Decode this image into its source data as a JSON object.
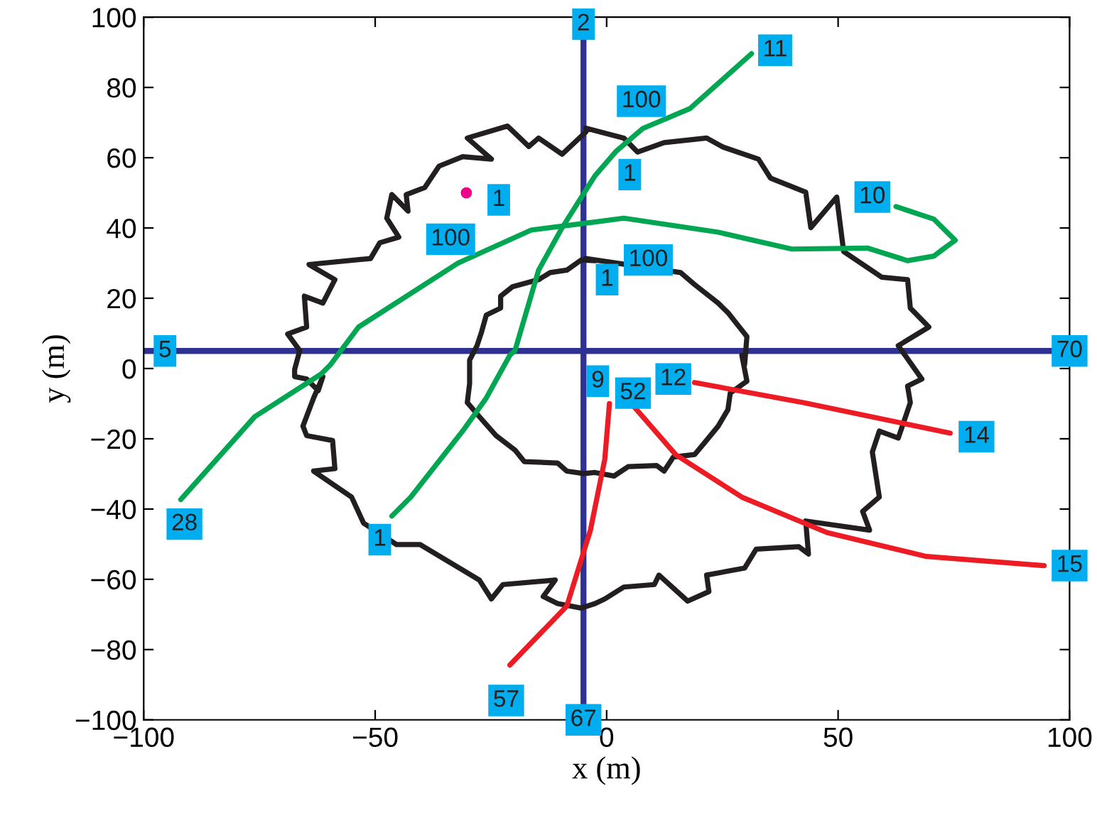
{
  "chart_data": {
    "type": "line",
    "xlabel": "x (m)",
    "ylabel": "y (m)",
    "xlim": [
      -100,
      100
    ],
    "ylim": [
      -100,
      100
    ],
    "xticks": [
      -100,
      -50,
      0,
      50,
      100
    ],
    "yticks": [
      -100,
      -80,
      -60,
      -40,
      -20,
      0,
      20,
      40,
      60,
      80,
      100
    ],
    "grid": false,
    "legend": false,
    "line_style": "solid",
    "series": [
      {
        "color": "#231f20",
        "x": [
          -4.5,
          -9.6,
          -14.7,
          -16.8,
          -21.4,
          -30.1,
          -24.9,
          -31.1,
          -36.2,
          -39.3,
          -43.3,
          -42.9,
          -46.4,
          -47.5,
          -44.9,
          -49,
          -51,
          -64.3,
          -58.7,
          -61.3,
          -65.3,
          -64.8,
          -68.9,
          -66.3,
          -67.4,
          -67.4,
          -64.8,
          -62.3,
          -61.3,
          -63.3,
          -65.6,
          -64.8,
          -59.2,
          -58.7,
          -63.3,
          -55.1,
          -52.5,
          -45.4,
          -40.3,
          -27.5,
          -24.9,
          -22.4,
          -11.1,
          -13.7,
          -10.6,
          -5.5,
          -2.5,
          -0.4,
          3.7,
          10.3,
          11.3,
          17.5,
          22.1,
          21.6,
          29.8,
          32.3,
          41.5,
          43.6,
          43,
          56.8,
          55.3,
          58.9,
          57.4,
          58.9,
          63,
          65.6,
          65,
          68.1,
          63,
          69.6,
          65.6,
          65,
          59.4,
          51.2,
          49.7,
          44.1,
          43,
          35.4,
          32.8,
          25.2,
          21.6,
          12.4,
          6.7,
          3.7,
          -4.5
        ],
        "values": [
          67.3,
          61,
          65.6,
          63.2,
          69,
          65.6,
          59.6,
          60.3,
          57.6,
          51.5,
          49.5,
          44.8,
          49.5,
          42.8,
          37.4,
          35.8,
          31.3,
          29.6,
          25.3,
          18.6,
          20.6,
          11.8,
          9.8,
          5.1,
          -0.3,
          -2.3,
          -3,
          -6.3,
          -2.3,
          -8.4,
          -16.4,
          -19.1,
          -20.5,
          -28.5,
          -29.2,
          -36.6,
          -44,
          -50.1,
          -50.1,
          -60.2,
          -65.6,
          -61.5,
          -60.2,
          -64.9,
          -66.9,
          -68.2,
          -66.9,
          -65.6,
          -62.2,
          -61.5,
          -58.8,
          -66.2,
          -63.5,
          -58.8,
          -56.8,
          -51.4,
          -50.7,
          -52.8,
          -43.4,
          -46,
          -40.7,
          -36.6,
          -23.8,
          -17.8,
          -19.8,
          -9.7,
          -5,
          -3,
          6.5,
          11.8,
          17.2,
          25.3,
          26,
          33.3,
          48.8,
          40.1,
          50.2,
          54.2,
          59.6,
          63,
          65.6,
          64.3,
          61.6,
          65.6,
          68.4
        ]
      },
      {
        "color": "#231f20",
        "x": [
          -2.5,
          -5.5,
          -8.6,
          -12.2,
          -14.7,
          -20.3,
          -22.9,
          -22.9,
          -26,
          -27,
          -28,
          -29.6,
          -29.6,
          -30.1,
          -27.5,
          -23.9,
          -19.8,
          -17.8,
          -10.6,
          -8.6,
          -5,
          -2.5,
          1.6,
          4.7,
          10.8,
          12.4,
          14.4,
          19,
          21.1,
          24.1,
          26.2,
          26.7,
          30.3,
          29.2,
          29.8,
          30.3,
          26.2,
          24.1,
          19,
          16,
          -4.5,
          -2.8
        ],
        "values": [
          30.7,
          30.9,
          28,
          27.3,
          25.3,
          23.3,
          20.6,
          17.2,
          15.2,
          10.5,
          6.5,
          2.4,
          -4.3,
          -9.7,
          -13.7,
          -19.1,
          -23.2,
          -26.5,
          -26.9,
          -29.2,
          -29.9,
          -29.6,
          -30.6,
          -27.9,
          -27.6,
          -29.2,
          -25.2,
          -24.5,
          -21.2,
          -16.4,
          -11.7,
          -7,
          -3.6,
          3.8,
          1,
          9.1,
          15.9,
          18.6,
          23.9,
          27.3,
          31.3,
          30.8
        ]
      },
      {
        "color": "#00a651",
        "x": [
          -92,
          -76,
          -61.7,
          -59.7,
          -53.6,
          -32.1,
          -16.3,
          -2.5,
          3.7,
          24.1,
          40,
          56.3,
          65,
          70.7,
          72.7,
          75.3,
          70.7,
          62.5
        ],
        "values": [
          -37.3,
          -13.7,
          -1.6,
          1,
          11.8,
          30,
          39.4,
          41.7,
          42.8,
          38.8,
          34,
          34.3,
          30.7,
          32,
          34,
          36.5,
          42.5,
          46.1
        ]
      },
      {
        "color": "#00a651",
        "x": [
          -46.4,
          -42.3,
          -31.1,
          -26,
          -20.9,
          -19.8,
          -14.7,
          -9.6,
          -2.5,
          2.1,
          7.8,
          18,
          31.3
        ],
        "values": [
          -42,
          -36.6,
          -17.8,
          -8.4,
          3.8,
          5.1,
          28,
          40.1,
          54.9,
          61.9,
          68.3,
          74,
          89.6
        ]
      },
      {
        "color": "#ed1c24",
        "x": [
          -20.9,
          -8.6,
          -3.5,
          -0.4,
          0.6
        ],
        "values": [
          -84.4,
          -67.6,
          -46,
          -25.8,
          -10
        ]
      },
      {
        "color": "#ed1c24",
        "x": [
          6,
          14.9,
          29.2,
          47.6,
          69.1,
          94.5
        ],
        "values": [
          -11,
          -24.5,
          -36.6,
          -46.7,
          -53.5,
          -56.1
        ]
      },
      {
        "color": "#ed1c24",
        "x": [
          19,
          42.5,
          74.2
        ],
        "values": [
          -4,
          -9.7,
          -18.4
        ]
      },
      {
        "type": "scatter",
        "color": "#ec008c",
        "x": [
          -30.3
        ],
        "values": [
          50
        ]
      }
    ],
    "ref_lines": [
      {
        "axis": "x",
        "value": -5,
        "color": "#2e3192"
      },
      {
        "axis": "y",
        "value": 5,
        "color": "#2e3192"
      }
    ],
    "annotations": [
      {
        "text": "2",
        "x": -5,
        "y": 98
      },
      {
        "text": "67",
        "x": -5,
        "y": -100
      },
      {
        "text": "5",
        "x": -95.4,
        "y": 5
      },
      {
        "text": "70",
        "x": 100,
        "y": 5
      },
      {
        "text": "1",
        "x": -23.3,
        "y": 48
      },
      {
        "text": "100",
        "x": -33.7,
        "y": 36.8
      },
      {
        "text": "100",
        "x": 7.5,
        "y": 76.1
      },
      {
        "text": "1",
        "x": 5,
        "y": 55.2
      },
      {
        "text": "1",
        "x": 0.1,
        "y": 25.3
      },
      {
        "text": "100",
        "x": 9,
        "y": 30.9
      },
      {
        "text": "10",
        "x": 57.4,
        "y": 48.8
      },
      {
        "text": "11",
        "x": 36.4,
        "y": 90.6
      },
      {
        "text": "28",
        "x": -91.2,
        "y": -44.3
      },
      {
        "text": "1",
        "x": -49,
        "y": -48.7
      },
      {
        "text": "57",
        "x": -21.7,
        "y": -94.5
      },
      {
        "text": "9",
        "x": -1.9,
        "y": -3.6
      },
      {
        "text": "52",
        "x": 5.7,
        "y": -7
      },
      {
        "text": "12",
        "x": 14.4,
        "y": -3
      },
      {
        "text": "14",
        "x": 79.9,
        "y": -19.4
      },
      {
        "text": "15",
        "x": 100,
        "y": -56.1
      }
    ]
  }
}
